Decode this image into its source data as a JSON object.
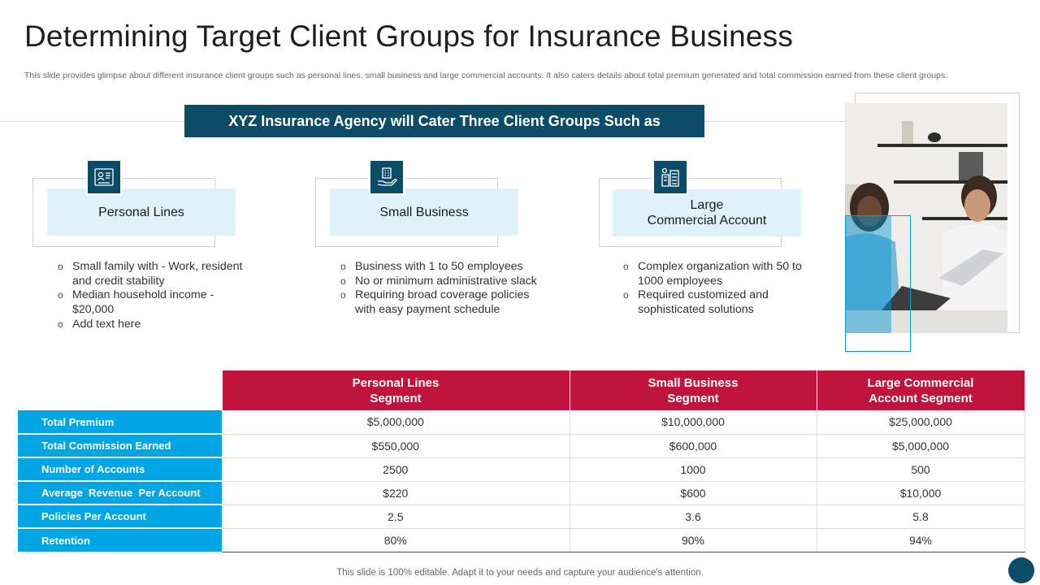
{
  "title": "Determining Target Client Groups for Insurance Business",
  "subtitle": "This slide provides glimpse about different insurance client groups such as personal lines, small business and large commercial accounts. It also caters details about total premium generated and total commission earned from these client groups.",
  "banner": "XYZ Insurance Agency will Cater Three Client Groups Such as",
  "colors": {
    "dark_teal": "#0d4c66",
    "light_blue": "#dff2fa",
    "crimson": "#c0143c",
    "cyan": "#00a5e3"
  },
  "groups": [
    {
      "label": "Personal Lines",
      "icon": "client-profile-icon",
      "bullets": [
        "Small family with - Work, resident and credit stability",
        "Median household income - $20,000",
        "Add text here"
      ]
    },
    {
      "label": "Small Business",
      "icon": "business-in-hand-icon",
      "bullets": [
        "Business with 1 to 50 employees",
        "No or minimum administrative slack",
        "Requiring broad coverage policies with easy payment schedule"
      ]
    },
    {
      "label_line1": "Large",
      "label_line2": "Commercial Account",
      "icon": "commercial-buildings-icon",
      "bullets": [
        "Complex organization with 50 to 1000 employees",
        "Required customized and sophisticated solutions"
      ]
    }
  ],
  "table": {
    "headers": [
      {
        "line1": "Personal Lines",
        "line2": "Segment"
      },
      {
        "line1": "Small Business",
        "line2": "Segment"
      },
      {
        "line1": "Large Commercial",
        "line2": "Account Segment"
      }
    ],
    "rows": [
      {
        "label": "Total Premium",
        "values": [
          "$5,000,000",
          "$10,000,000",
          "$25,000,000"
        ]
      },
      {
        "label": "Total Commission Earned",
        "values": [
          "$550,000",
          "$600,000",
          "$5,000,000"
        ]
      },
      {
        "label": "Number of Accounts",
        "values": [
          "2500",
          "1000",
          "500"
        ]
      },
      {
        "label": "Average  Revenue  Per Account",
        "values": [
          "$220",
          "$600",
          "$10,000"
        ]
      },
      {
        "label": "Policies Per Account",
        "values": [
          "2.5",
          "3.6",
          "5.8"
        ]
      },
      {
        "label": "Retention",
        "values": [
          "80%",
          "90%",
          "94%"
        ]
      }
    ]
  },
  "footer": "This slide is 100% editable. Adapt it to your needs and capture your audience's attention."
}
